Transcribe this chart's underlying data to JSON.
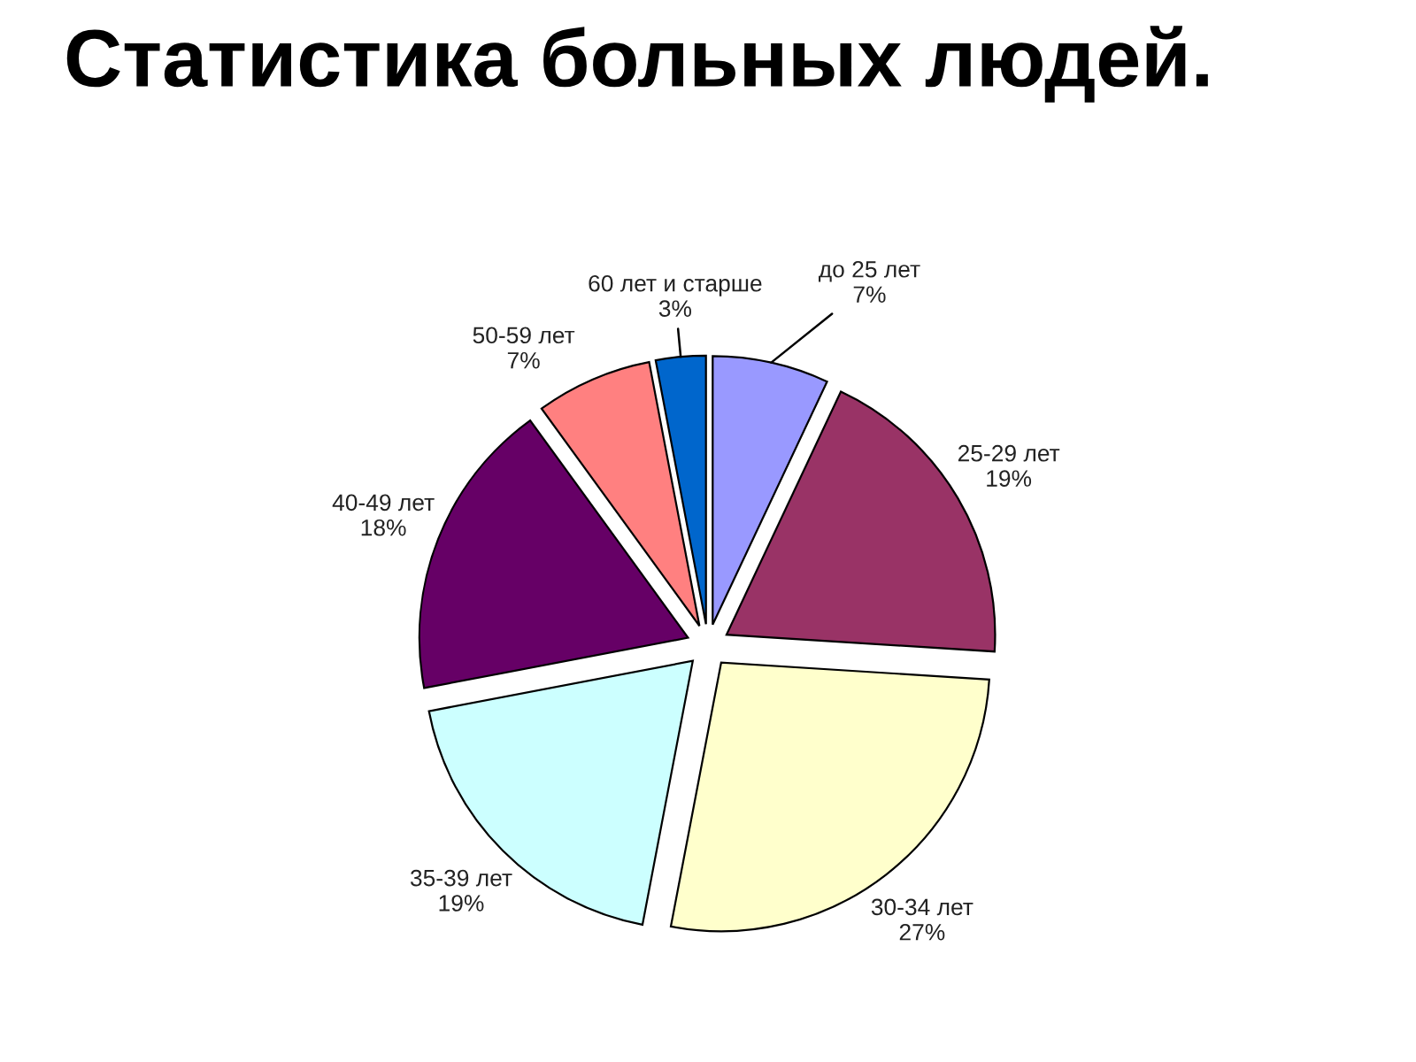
{
  "chart_data": {
    "type": "pie",
    "title": "Статистика больных людей.",
    "categories": [
      "до 25 лет",
      "25-29 лет",
      "30-34 лет",
      "35-39 лет",
      "40-49 лет",
      "50-59 лет",
      "60 лет и старше"
    ],
    "values": [
      7,
      19,
      27,
      19,
      18,
      7,
      3
    ],
    "value_labels": [
      "7%",
      "19%",
      "27%",
      "19%",
      "18%",
      "7%",
      "3%"
    ],
    "colors": [
      "#9999ff",
      "#993366",
      "#ffffcc",
      "#ccffff",
      "#660066",
      "#ff8080",
      "#0066cc"
    ]
  }
}
